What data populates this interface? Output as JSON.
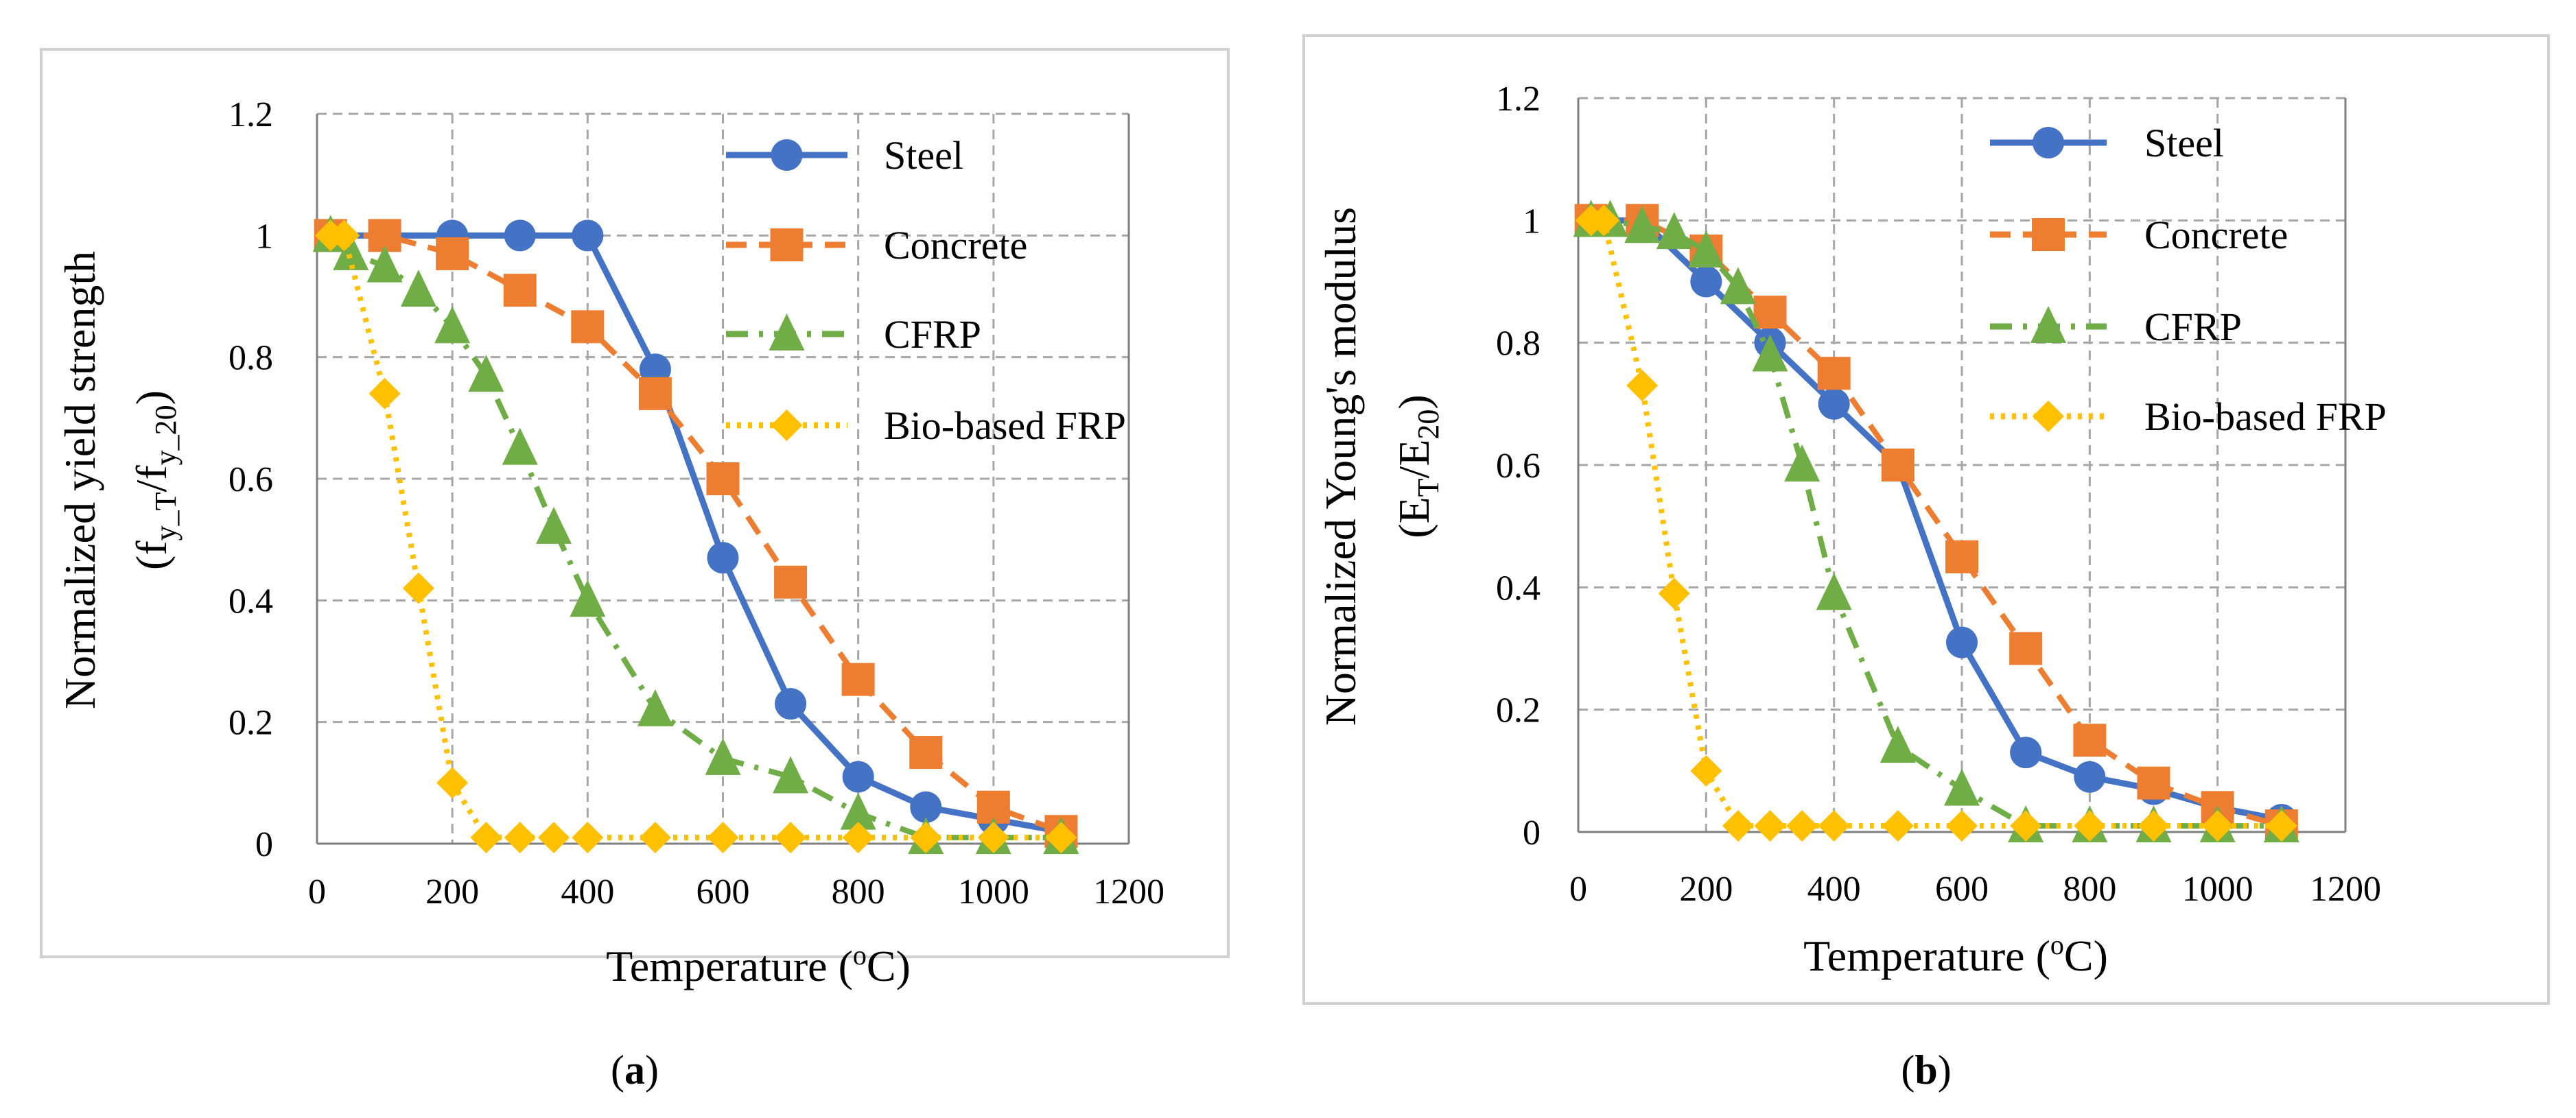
{
  "colors": {
    "steel": "#4472C4",
    "concrete": "#ED7D31",
    "cfrp": "#70AD47",
    "bio": "#FFC000"
  },
  "chart_data": [
    {
      "type": "line",
      "panel_label": "(a)",
      "panel_letter": "a",
      "xlabel": "Temperature (°C)",
      "xlabel_main": "Temperature (",
      "xlabel_sup": "o",
      "xlabel_end": "C)",
      "ylabel_line1": "Normalized yield strength",
      "ylabel_line2_parts": [
        "(f",
        "y_T",
        "/f",
        "y_20",
        ")"
      ],
      "xlim": [
        0,
        1200
      ],
      "ylim": [
        0,
        1.2
      ],
      "xticks": [
        "0",
        "200",
        "400",
        "600",
        "800",
        "1000",
        "1200"
      ],
      "yticks": [
        "0",
        "0.2",
        "0.4",
        "0.6",
        "0.8",
        "1",
        "1.2"
      ],
      "grid": true,
      "legend_position": "top-right",
      "series": [
        {
          "name": "Steel",
          "key": "steel",
          "marker": "circle",
          "dash": "solid",
          "x": [
            20,
            200,
            300,
            400,
            500,
            600,
            700,
            800,
            900,
            1000,
            1100
          ],
          "y": [
            1.0,
            1.0,
            1.0,
            1.0,
            0.78,
            0.47,
            0.23,
            0.11,
            0.06,
            0.04,
            0.02
          ]
        },
        {
          "name": "Concrete",
          "key": "concrete",
          "marker": "square",
          "dash": "dash",
          "x": [
            20,
            100,
            200,
            300,
            400,
            500,
            600,
            700,
            800,
            900,
            1000,
            1100
          ],
          "y": [
            1.0,
            1.0,
            0.97,
            0.91,
            0.85,
            0.74,
            0.6,
            0.43,
            0.27,
            0.15,
            0.06,
            0.02
          ]
        },
        {
          "name": "CFRP",
          "key": "cfrp",
          "marker": "triangle",
          "dash": "dashdot",
          "x": [
            20,
            50,
            100,
            150,
            200,
            250,
            300,
            350,
            400,
            500,
            600,
            700,
            800,
            900,
            1000,
            1100
          ],
          "y": [
            1.0,
            0.97,
            0.95,
            0.91,
            0.85,
            0.77,
            0.65,
            0.52,
            0.4,
            0.22,
            0.14,
            0.11,
            0.05,
            0.01,
            0.01,
            0.01
          ]
        },
        {
          "name": "Bio-based FRP",
          "key": "bio",
          "marker": "diamond",
          "dash": "dot",
          "x": [
            20,
            40,
            100,
            150,
            200,
            250,
            300,
            350,
            400,
            500,
            600,
            700,
            800,
            900,
            1000,
            1100
          ],
          "y": [
            1.0,
            1.0,
            0.74,
            0.42,
            0.1,
            0.01,
            0.01,
            0.01,
            0.01,
            0.01,
            0.01,
            0.01,
            0.01,
            0.01,
            0.01,
            0.01
          ]
        }
      ]
    },
    {
      "type": "line",
      "panel_label": "(b)",
      "panel_letter": "b",
      "xlabel": "Temperature (°C)",
      "xlabel_main": "Temperature (",
      "xlabel_sup": "o",
      "xlabel_end": "C)",
      "ylabel_line1": "Normalized Young's modulus",
      "ylabel_line2_parts": [
        "(E",
        "T",
        "/E",
        "20",
        ")"
      ],
      "xlim": [
        0,
        1200
      ],
      "ylim": [
        0,
        1.2
      ],
      "xticks": [
        "0",
        "200",
        "400",
        "600",
        "800",
        "1000",
        "1200"
      ],
      "yticks": [
        "0",
        "0.2",
        "0.4",
        "0.6",
        "0.8",
        "1",
        "1.2"
      ],
      "grid": true,
      "legend_position": "top-right",
      "series": [
        {
          "name": "Steel",
          "key": "steel",
          "marker": "circle",
          "dash": "solid",
          "x": [
            20,
            100,
            200,
            300,
            400,
            500,
            600,
            700,
            800,
            900,
            1000,
            1100
          ],
          "y": [
            1.0,
            1.0,
            0.9,
            0.8,
            0.7,
            0.6,
            0.31,
            0.13,
            0.09,
            0.07,
            0.04,
            0.02
          ]
        },
        {
          "name": "Concrete",
          "key": "concrete",
          "marker": "square",
          "dash": "dash",
          "x": [
            20,
            100,
            200,
            300,
            400,
            500,
            600,
            700,
            800,
            900,
            1000,
            1100
          ],
          "y": [
            1.0,
            1.0,
            0.95,
            0.85,
            0.75,
            0.6,
            0.45,
            0.3,
            0.15,
            0.08,
            0.04,
            0.01
          ]
        },
        {
          "name": "CFRP",
          "key": "cfrp",
          "marker": "triangle",
          "dash": "dashdot",
          "x": [
            20,
            50,
            100,
            150,
            200,
            250,
            300,
            350,
            400,
            500,
            600,
            700,
            800,
            900,
            1000,
            1100
          ],
          "y": [
            1.0,
            1.0,
            0.99,
            0.98,
            0.95,
            0.89,
            0.78,
            0.6,
            0.39,
            0.14,
            0.07,
            0.01,
            0.01,
            0.01,
            0.01,
            0.01
          ]
        },
        {
          "name": "Bio-based FRP",
          "key": "bio",
          "marker": "diamond",
          "dash": "dot",
          "x": [
            20,
            40,
            100,
            150,
            200,
            250,
            300,
            350,
            400,
            500,
            600,
            700,
            800,
            900,
            1000,
            1100
          ],
          "y": [
            1.0,
            1.0,
            0.73,
            0.39,
            0.1,
            0.01,
            0.01,
            0.01,
            0.01,
            0.01,
            0.01,
            0.01,
            0.01,
            0.01,
            0.01,
            0.01
          ]
        }
      ]
    }
  ]
}
